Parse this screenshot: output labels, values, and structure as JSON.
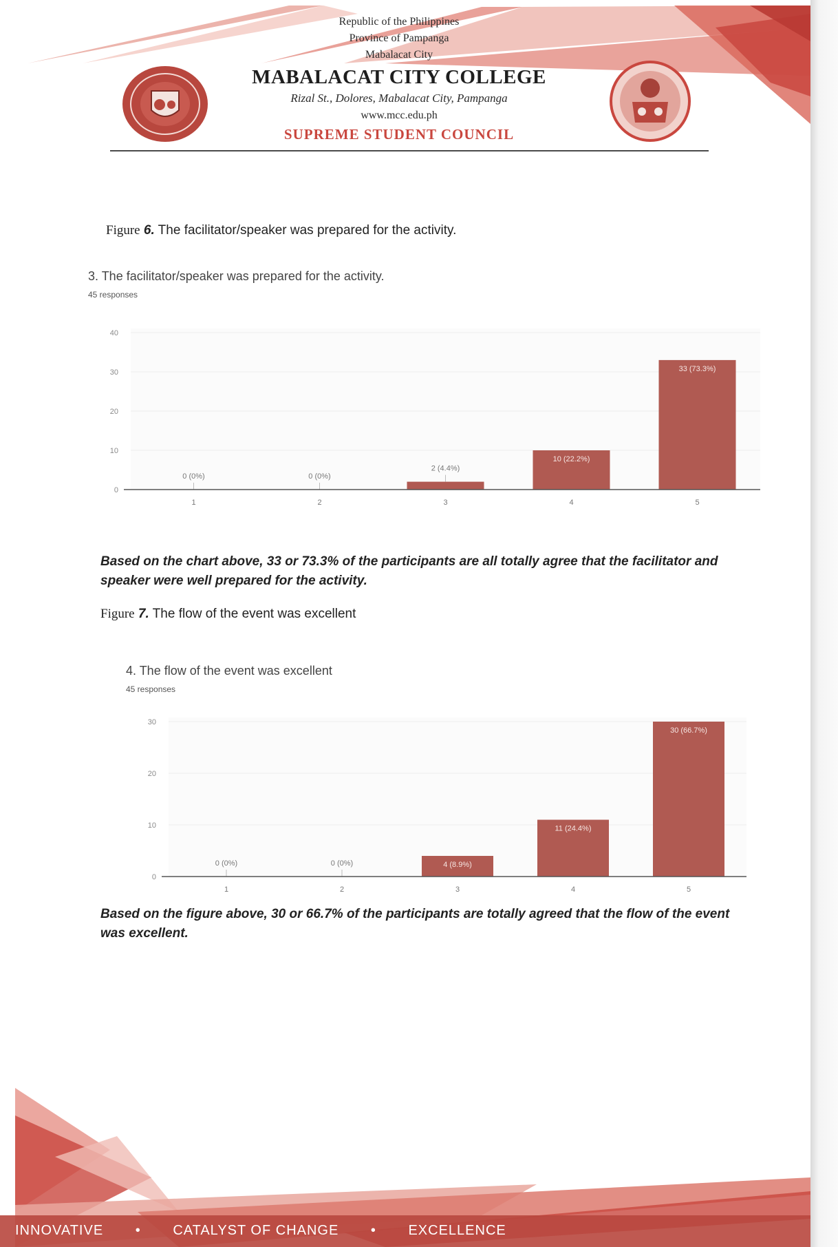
{
  "header": {
    "republic": "Republic of the Philippines",
    "province": "Province of Pampanga",
    "city": "Mabalacat City",
    "college": "MABALACAT CITY COLLEGE",
    "address": "Rizal St., Dolores, Mabalacat City, Pampanga",
    "website": "www.mcc.edu.ph",
    "council": "SUPREME STUDENT COUNCIL",
    "accent_color": "#c9473f"
  },
  "figure6": {
    "caption_word": "Figure",
    "caption_num": "6.",
    "caption_text": " The facilitator/speaker was prepared for the activity.",
    "chart_title": "3. The facilitator/speaker was prepared for the activity.",
    "responses": "45 responses",
    "analysis": "Based on the chart above, 33 or 73.3% of the participants are all totally agree that the facilitator and speaker were well prepared for the activity."
  },
  "figure7": {
    "caption_word": "Figure",
    "caption_num": "7.",
    "caption_text": " The flow of the event was excellent",
    "chart_title": "4. The flow of the event was excellent",
    "responses": "45 responses",
    "analysis": "Based on the figure above, 30 or 66.7% of the participants are totally agreed that the flow of the event was excellent."
  },
  "chart_data": [
    {
      "type": "bar",
      "title": "3. The facilitator/speaker was prepared for the activity.",
      "categories": [
        "1",
        "2",
        "3",
        "4",
        "5"
      ],
      "values": [
        0,
        0,
        2,
        10,
        33
      ],
      "data_labels": [
        "0 (0%)",
        "0 (0%)",
        "2 (4.4%)",
        "10 (22.2%)",
        "33 (73.3%)"
      ],
      "yticks": [
        0,
        10,
        20,
        30,
        40
      ],
      "ylim": [
        0,
        40
      ],
      "bar_color": "#b05a52"
    },
    {
      "type": "bar",
      "title": "4. The flow of the event was excellent",
      "categories": [
        "1",
        "2",
        "3",
        "4",
        "5"
      ],
      "values": [
        0,
        0,
        4,
        11,
        30
      ],
      "data_labels": [
        "0 (0%)",
        "0 (0%)",
        "4 (8.9%)",
        "11 (24.4%)",
        "30 (66.7%)"
      ],
      "yticks": [
        0,
        10,
        20,
        30
      ],
      "ylim": [
        0,
        30
      ],
      "bar_color": "#b05a52"
    }
  ],
  "footer": {
    "motto": [
      "INNOVATIVE",
      "•",
      "CATALYST OF CHANGE",
      "•",
      "EXCELLENCE"
    ]
  }
}
